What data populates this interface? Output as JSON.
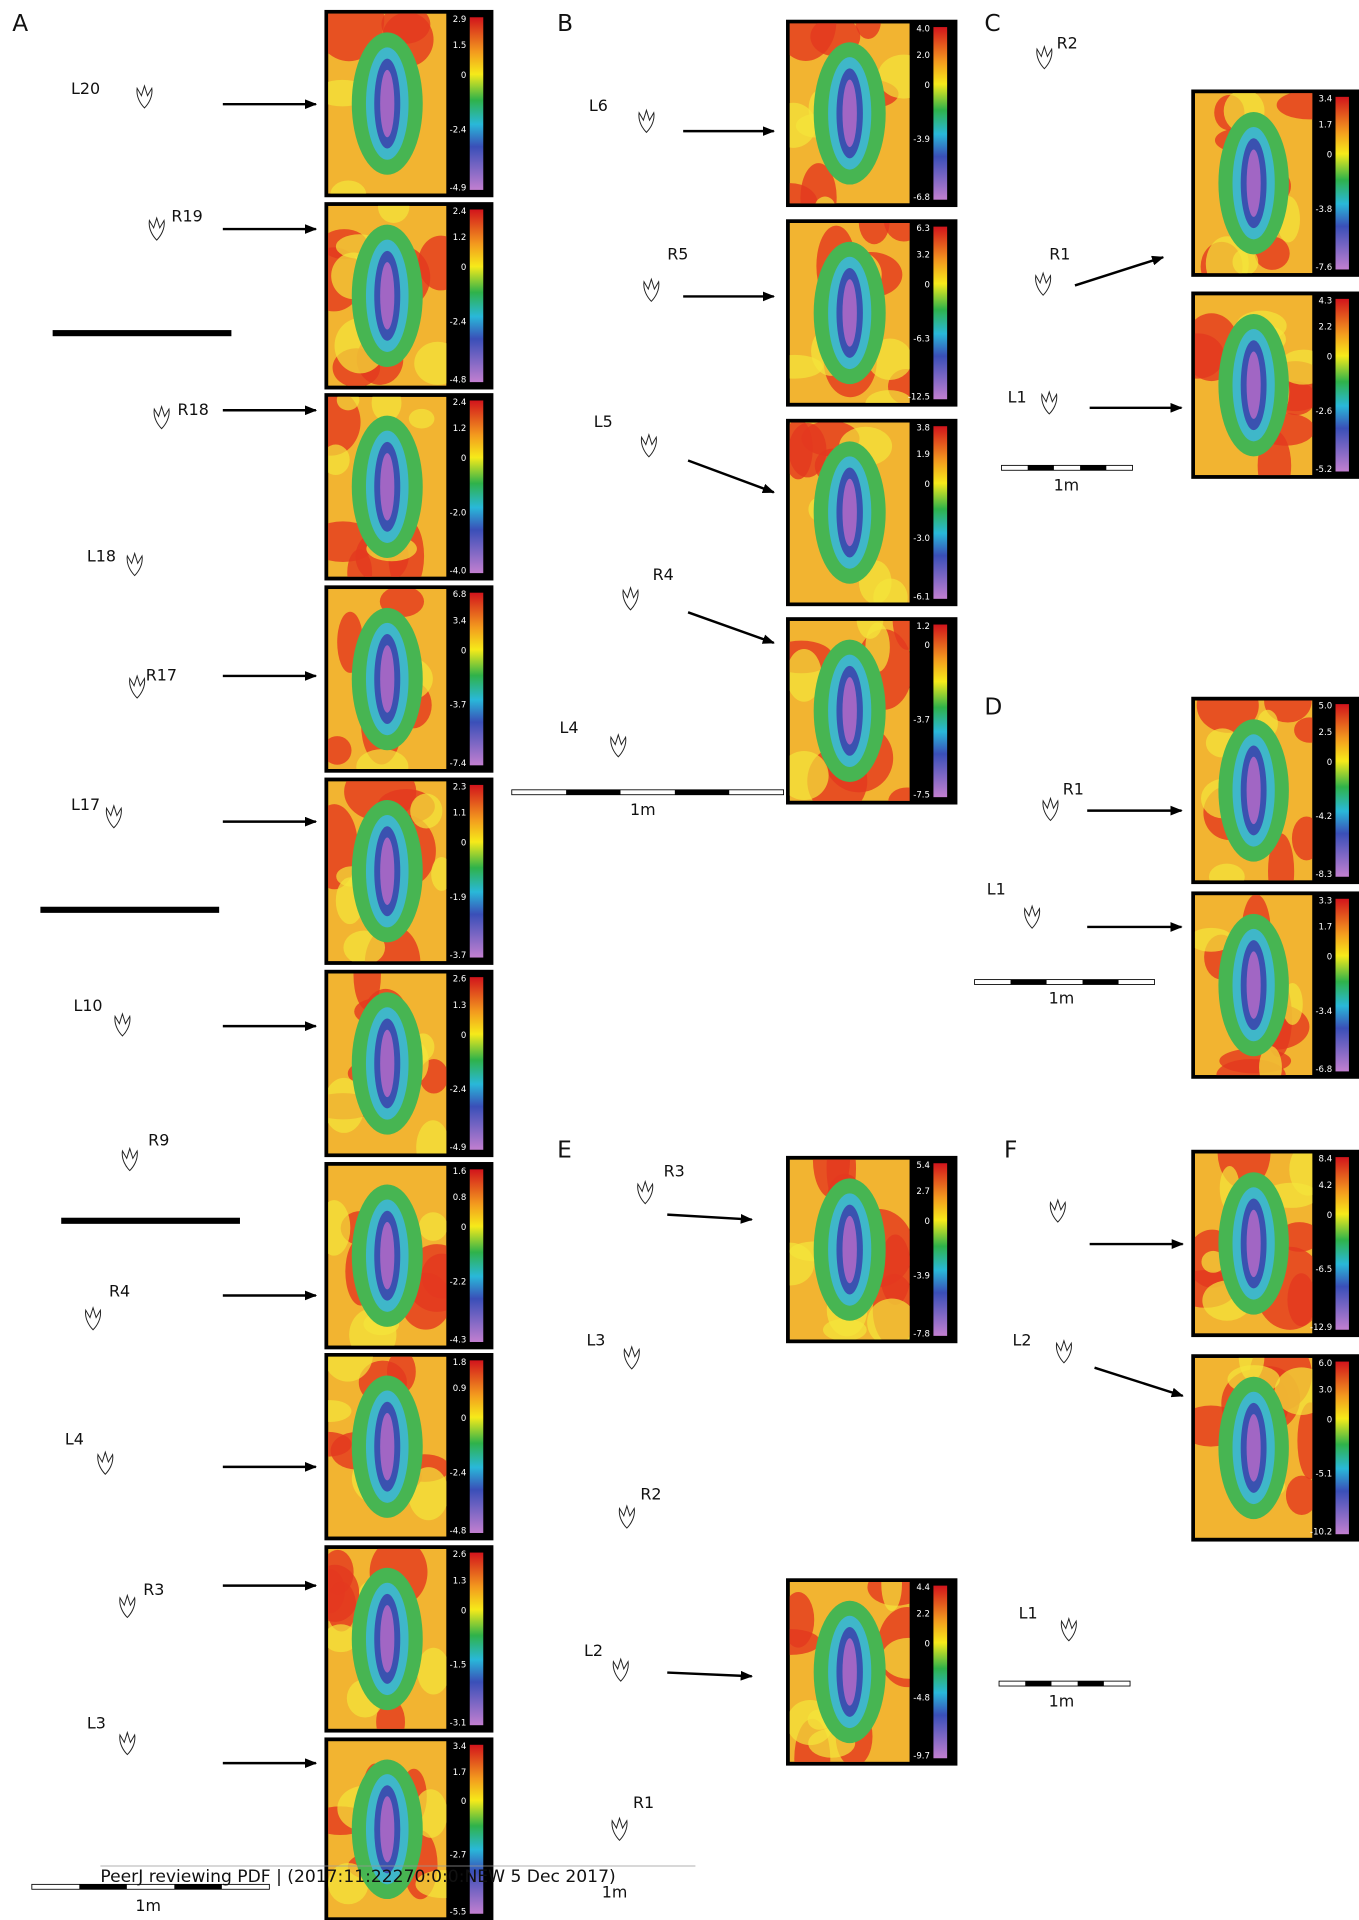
{
  "panels": [
    {
      "letter": "A",
      "tracks": [
        "L20",
        "R19",
        "R18",
        "L18",
        "R17",
        "L17",
        "L10",
        "R9",
        "R4",
        "L4",
        "R3",
        "L3"
      ],
      "heatmaps": [
        {
          "ticks": [
            "2.9",
            "1.5",
            "0",
            "-2.4",
            "-4.9"
          ]
        },
        {
          "ticks": [
            "2.4",
            "1.2",
            "0",
            "-2.4",
            "-4.8"
          ]
        },
        {
          "ticks": [
            "2.4",
            "1.2",
            "0",
            "-2.0",
            "-4.0"
          ]
        },
        {
          "ticks": [
            "6.8",
            "3.4",
            "0",
            "-3.7",
            "-7.4"
          ]
        },
        {
          "ticks": [
            "2.3",
            "1.1",
            "0",
            "-1.9",
            "-3.7"
          ]
        },
        {
          "ticks": [
            "2.6",
            "1.3",
            "0",
            "-2.4",
            "-4.9"
          ]
        },
        {
          "ticks": [
            "1.6",
            "0.8",
            "0",
            "-2.2",
            "-4.3"
          ]
        },
        {
          "ticks": [
            "1.8",
            "0.9",
            "0",
            "-2.4",
            "-4.8"
          ]
        },
        {
          "ticks": [
            "2.6",
            "1.3",
            "0",
            "-1.5",
            "-3.1"
          ]
        },
        {
          "ticks": [
            "3.4",
            "1.7",
            "0",
            "-2.7",
            "-5.5"
          ]
        }
      ],
      "scale": "1m"
    },
    {
      "letter": "B",
      "tracks": [
        "L6",
        "R5",
        "L5",
        "R4",
        "L4"
      ],
      "heatmaps": [
        {
          "ticks": [
            "4.0",
            "2.0",
            "0",
            "-3.9",
            "-6.8"
          ]
        },
        {
          "ticks": [
            "6.3",
            "3.2",
            "0",
            "-6.3",
            "-12.5"
          ]
        },
        {
          "ticks": [
            "3.8",
            "1.9",
            "0",
            "-3.0",
            "-6.1"
          ]
        },
        {
          "ticks": [
            "1.2",
            "0",
            "-3.7",
            "-7.5"
          ]
        }
      ],
      "scale": "1m"
    },
    {
      "letter": "C",
      "tracks": [
        "R2",
        "R1",
        "L1"
      ],
      "heatmaps": [
        {
          "ticks": [
            "3.4",
            "1.7",
            "0",
            "-3.8",
            "-7.6"
          ]
        },
        {
          "ticks": [
            "4.3",
            "2.2",
            "0",
            "-2.6",
            "-5.2"
          ]
        }
      ],
      "scale": "1m"
    },
    {
      "letter": "D",
      "tracks": [
        "R1",
        "L1"
      ],
      "heatmaps": [
        {
          "ticks": [
            "5.0",
            "2.5",
            "0",
            "-4.2",
            "-8.3"
          ]
        },
        {
          "ticks": [
            "3.3",
            "1.7",
            "0",
            "-3.4",
            "-6.8"
          ]
        }
      ],
      "scale": "1m"
    },
    {
      "letter": "E",
      "tracks": [
        "R3",
        "L3",
        "R2",
        "L2",
        "R1"
      ],
      "heatmaps": [
        {
          "ticks": [
            "5.4",
            "2.7",
            "0",
            "-3.9",
            "-7.8"
          ]
        },
        {
          "ticks": [
            "4.4",
            "2.2",
            "0",
            "-4.8",
            "-9.7"
          ]
        }
      ],
      "scale": "1m"
    },
    {
      "letter": "F",
      "tracks": [
        "L2",
        "L1"
      ],
      "heatmaps": [
        {
          "ticks": [
            "8.4",
            "4.2",
            "0",
            "-6.5",
            "-12.9"
          ]
        },
        {
          "ticks": [
            "6.0",
            "3.0",
            "0",
            "-5.1",
            "-10.2"
          ]
        }
      ],
      "scale": "1m"
    }
  ],
  "footer": "PeerJ reviewing PDF | (2017:11:22270:0:0:NEW 5 Dec 2017)"
}
